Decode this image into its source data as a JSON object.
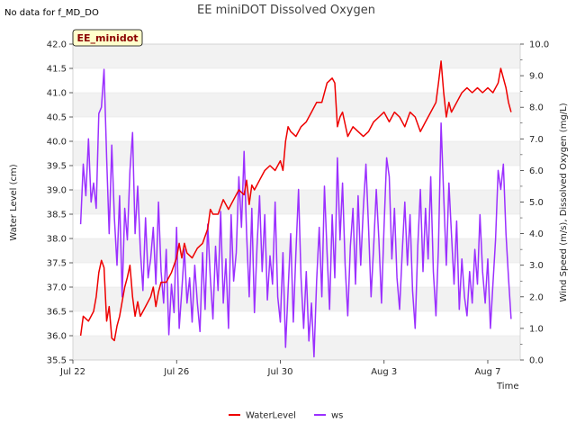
{
  "chart_data": {
    "type": "line",
    "title": "EE miniDOT Dissolved Oxygen",
    "no_data_note": "No data for f_MD_DO",
    "station_label": "EE_minidot",
    "xlabel": "Time",
    "ylabel_left": "Water Level (cm)",
    "ylabel_right": "Wind Speed (m/s), Dissolved Oxygen (mg/L)",
    "x_range_days": [
      0,
      17.25
    ],
    "ylim_left": [
      35.5,
      42.0
    ],
    "ylim_right": [
      0.0,
      10.0
    ],
    "x_ticks": [
      {
        "day": 0,
        "label": "Jul 22"
      },
      {
        "day": 4,
        "label": "Jul 26"
      },
      {
        "day": 8,
        "label": "Jul 30"
      },
      {
        "day": 12,
        "label": "Aug 3"
      },
      {
        "day": 16,
        "label": "Aug 7"
      }
    ],
    "y_ticks_left": [
      "35.5",
      "36.0",
      "36.5",
      "37.0",
      "37.5",
      "38.0",
      "38.5",
      "39.0",
      "39.5",
      "40.0",
      "40.5",
      "41.0",
      "41.5",
      "42.0"
    ],
    "y_ticks_right": [
      "0.0",
      "1.0",
      "2.0",
      "3.0",
      "4.0",
      "5.0",
      "6.0",
      "7.0",
      "8.0",
      "9.0",
      "10.0"
    ],
    "grid": "horizontal bands",
    "legend_position": "bottom-center",
    "series": [
      {
        "name": "WaterLevel",
        "axis": "left",
        "color": "#ee0000",
        "points": [
          [
            0.3,
            36.0
          ],
          [
            0.4,
            36.4
          ],
          [
            0.6,
            36.3
          ],
          [
            0.8,
            36.5
          ],
          [
            0.9,
            36.8
          ],
          [
            1.0,
            37.3
          ],
          [
            1.1,
            37.55
          ],
          [
            1.2,
            37.4
          ],
          [
            1.3,
            36.3
          ],
          [
            1.4,
            36.6
          ],
          [
            1.5,
            35.95
          ],
          [
            1.6,
            35.9
          ],
          [
            1.7,
            36.2
          ],
          [
            1.8,
            36.4
          ],
          [
            1.9,
            36.7
          ],
          [
            2.0,
            37.0
          ],
          [
            2.1,
            37.2
          ],
          [
            2.2,
            37.45
          ],
          [
            2.3,
            36.8
          ],
          [
            2.4,
            36.4
          ],
          [
            2.5,
            36.7
          ],
          [
            2.6,
            36.4
          ],
          [
            2.8,
            36.6
          ],
          [
            3.0,
            36.8
          ],
          [
            3.1,
            37.0
          ],
          [
            3.2,
            36.6
          ],
          [
            3.3,
            36.9
          ],
          [
            3.4,
            37.1
          ],
          [
            3.6,
            37.1
          ],
          [
            3.8,
            37.3
          ],
          [
            4.0,
            37.6
          ],
          [
            4.1,
            37.9
          ],
          [
            4.2,
            37.6
          ],
          [
            4.3,
            37.9
          ],
          [
            4.4,
            37.7
          ],
          [
            4.6,
            37.6
          ],
          [
            4.8,
            37.8
          ],
          [
            5.0,
            37.9
          ],
          [
            5.2,
            38.2
          ],
          [
            5.3,
            38.6
          ],
          [
            5.4,
            38.5
          ],
          [
            5.6,
            38.5
          ],
          [
            5.8,
            38.8
          ],
          [
            6.0,
            38.6
          ],
          [
            6.2,
            38.8
          ],
          [
            6.4,
            39.0
          ],
          [
            6.6,
            38.9
          ],
          [
            6.7,
            39.2
          ],
          [
            6.8,
            38.7
          ],
          [
            6.9,
            39.1
          ],
          [
            7.0,
            39.0
          ],
          [
            7.2,
            39.2
          ],
          [
            7.4,
            39.4
          ],
          [
            7.6,
            39.5
          ],
          [
            7.8,
            39.4
          ],
          [
            8.0,
            39.6
          ],
          [
            8.1,
            39.4
          ],
          [
            8.2,
            40.0
          ],
          [
            8.3,
            40.3
          ],
          [
            8.4,
            40.2
          ],
          [
            8.6,
            40.1
          ],
          [
            8.8,
            40.3
          ],
          [
            9.0,
            40.4
          ],
          [
            9.2,
            40.6
          ],
          [
            9.4,
            40.8
          ],
          [
            9.6,
            40.8
          ],
          [
            9.8,
            41.2
          ],
          [
            10.0,
            41.3
          ],
          [
            10.1,
            41.2
          ],
          [
            10.2,
            40.3
          ],
          [
            10.3,
            40.5
          ],
          [
            10.4,
            40.6
          ],
          [
            10.6,
            40.1
          ],
          [
            10.8,
            40.3
          ],
          [
            11.0,
            40.2
          ],
          [
            11.2,
            40.1
          ],
          [
            11.4,
            40.2
          ],
          [
            11.6,
            40.4
          ],
          [
            11.8,
            40.5
          ],
          [
            12.0,
            40.6
          ],
          [
            12.2,
            40.4
          ],
          [
            12.4,
            40.6
          ],
          [
            12.6,
            40.5
          ],
          [
            12.8,
            40.3
          ],
          [
            13.0,
            40.6
          ],
          [
            13.2,
            40.5
          ],
          [
            13.4,
            40.2
          ],
          [
            13.6,
            40.4
          ],
          [
            13.8,
            40.6
          ],
          [
            14.0,
            40.8
          ],
          [
            14.1,
            41.2
          ],
          [
            14.2,
            41.65
          ],
          [
            14.3,
            41.0
          ],
          [
            14.4,
            40.5
          ],
          [
            14.5,
            40.8
          ],
          [
            14.6,
            40.6
          ],
          [
            14.8,
            40.8
          ],
          [
            15.0,
            41.0
          ],
          [
            15.2,
            41.1
          ],
          [
            15.4,
            41.0
          ],
          [
            15.6,
            41.1
          ],
          [
            15.8,
            41.0
          ],
          [
            16.0,
            41.1
          ],
          [
            16.2,
            41.0
          ],
          [
            16.4,
            41.2
          ],
          [
            16.5,
            41.5
          ],
          [
            16.6,
            41.3
          ],
          [
            16.7,
            41.1
          ],
          [
            16.8,
            40.8
          ],
          [
            16.9,
            40.6
          ]
        ]
      },
      {
        "name": "ws",
        "axis": "right",
        "color": "#9b30ff",
        "points": [
          [
            0.3,
            4.3
          ],
          [
            0.4,
            6.2
          ],
          [
            0.5,
            5.2
          ],
          [
            0.6,
            7.0
          ],
          [
            0.7,
            5.0
          ],
          [
            0.8,
            5.6
          ],
          [
            0.9,
            4.8
          ],
          [
            1.0,
            7.8
          ],
          [
            1.1,
            8.0
          ],
          [
            1.2,
            9.2
          ],
          [
            1.3,
            6.4
          ],
          [
            1.4,
            4.0
          ],
          [
            1.5,
            6.8
          ],
          [
            1.6,
            4.5
          ],
          [
            1.7,
            3.0
          ],
          [
            1.8,
            5.2
          ],
          [
            1.9,
            2.0
          ],
          [
            2.0,
            4.8
          ],
          [
            2.1,
            3.8
          ],
          [
            2.2,
            6.0
          ],
          [
            2.3,
            7.2
          ],
          [
            2.4,
            4.0
          ],
          [
            2.5,
            5.5
          ],
          [
            2.6,
            3.5
          ],
          [
            2.7,
            2.2
          ],
          [
            2.8,
            4.5
          ],
          [
            2.9,
            2.6
          ],
          [
            3.0,
            3.2
          ],
          [
            3.1,
            4.2
          ],
          [
            3.2,
            2.4
          ],
          [
            3.3,
            5.0
          ],
          [
            3.4,
            2.8
          ],
          [
            3.5,
            1.8
          ],
          [
            3.6,
            3.5
          ],
          [
            3.7,
            0.8
          ],
          [
            3.8,
            2.4
          ],
          [
            3.9,
            1.5
          ],
          [
            4.0,
            4.2
          ],
          [
            4.1,
            1.0
          ],
          [
            4.2,
            2.2
          ],
          [
            4.3,
            3.5
          ],
          [
            4.4,
            1.8
          ],
          [
            4.5,
            2.6
          ],
          [
            4.6,
            1.2
          ],
          [
            4.7,
            3.0
          ],
          [
            4.8,
            1.8
          ],
          [
            4.9,
            0.9
          ],
          [
            5.0,
            3.4
          ],
          [
            5.1,
            1.6
          ],
          [
            5.2,
            4.3
          ],
          [
            5.3,
            2.6
          ],
          [
            5.4,
            1.3
          ],
          [
            5.5,
            3.6
          ],
          [
            5.6,
            2.2
          ],
          [
            5.7,
            4.7
          ],
          [
            5.8,
            1.8
          ],
          [
            5.9,
            3.2
          ],
          [
            6.0,
            1.0
          ],
          [
            6.1,
            4.6
          ],
          [
            6.2,
            2.5
          ],
          [
            6.3,
            3.4
          ],
          [
            6.4,
            5.8
          ],
          [
            6.5,
            4.2
          ],
          [
            6.6,
            6.6
          ],
          [
            6.7,
            4.0
          ],
          [
            6.8,
            2.0
          ],
          [
            6.9,
            4.8
          ],
          [
            7.0,
            1.5
          ],
          [
            7.1,
            3.6
          ],
          [
            7.2,
            5.2
          ],
          [
            7.3,
            2.8
          ],
          [
            7.4,
            4.6
          ],
          [
            7.5,
            1.9
          ],
          [
            7.6,
            3.3
          ],
          [
            7.7,
            2.4
          ],
          [
            7.8,
            5.0
          ],
          [
            7.9,
            2.0
          ],
          [
            8.0,
            1.2
          ],
          [
            8.1,
            3.4
          ],
          [
            8.2,
            0.4
          ],
          [
            8.3,
            2.2
          ],
          [
            8.4,
            4.0
          ],
          [
            8.5,
            1.2
          ],
          [
            8.6,
            3.4
          ],
          [
            8.7,
            5.4
          ],
          [
            8.8,
            2.6
          ],
          [
            8.9,
            1.0
          ],
          [
            9.0,
            2.8
          ],
          [
            9.1,
            0.6
          ],
          [
            9.2,
            1.8
          ],
          [
            9.3,
            0.1
          ],
          [
            9.4,
            2.5
          ],
          [
            9.5,
            4.2
          ],
          [
            9.6,
            2.0
          ],
          [
            9.7,
            5.5
          ],
          [
            9.8,
            3.4
          ],
          [
            9.9,
            1.6
          ],
          [
            10.0,
            4.6
          ],
          [
            10.1,
            2.6
          ],
          [
            10.2,
            6.4
          ],
          [
            10.3,
            3.8
          ],
          [
            10.4,
            5.6
          ],
          [
            10.5,
            3.0
          ],
          [
            10.6,
            1.4
          ],
          [
            10.7,
            3.6
          ],
          [
            10.8,
            4.8
          ],
          [
            10.9,
            2.4
          ],
          [
            11.0,
            5.2
          ],
          [
            11.1,
            3.0
          ],
          [
            11.2,
            4.8
          ],
          [
            11.3,
            6.2
          ],
          [
            11.4,
            4.2
          ],
          [
            11.5,
            2.0
          ],
          [
            11.6,
            3.6
          ],
          [
            11.7,
            5.4
          ],
          [
            11.8,
            3.8
          ],
          [
            11.9,
            1.8
          ],
          [
            12.0,
            4.2
          ],
          [
            12.1,
            6.4
          ],
          [
            12.2,
            5.8
          ],
          [
            12.3,
            3.2
          ],
          [
            12.4,
            4.8
          ],
          [
            12.5,
            2.6
          ],
          [
            12.6,
            1.6
          ],
          [
            12.7,
            3.4
          ],
          [
            12.8,
            5.0
          ],
          [
            12.9,
            3.0
          ],
          [
            13.0,
            4.6
          ],
          [
            13.1,
            2.2
          ],
          [
            13.2,
            1.0
          ],
          [
            13.3,
            3.6
          ],
          [
            13.4,
            5.4
          ],
          [
            13.5,
            2.8
          ],
          [
            13.6,
            4.8
          ],
          [
            13.7,
            3.2
          ],
          [
            13.8,
            5.8
          ],
          [
            13.9,
            2.8
          ],
          [
            14.0,
            1.4
          ],
          [
            14.1,
            3.6
          ],
          [
            14.2,
            7.5
          ],
          [
            14.3,
            5.2
          ],
          [
            14.4,
            3.0
          ],
          [
            14.5,
            5.6
          ],
          [
            14.6,
            4.0
          ],
          [
            14.7,
            2.4
          ],
          [
            14.8,
            4.4
          ],
          [
            14.9,
            1.6
          ],
          [
            15.0,
            3.2
          ],
          [
            15.1,
            2.0
          ],
          [
            15.2,
            1.4
          ],
          [
            15.3,
            2.8
          ],
          [
            15.4,
            1.8
          ],
          [
            15.5,
            3.5
          ],
          [
            15.6,
            2.4
          ],
          [
            15.7,
            4.6
          ],
          [
            15.8,
            2.8
          ],
          [
            15.9,
            1.8
          ],
          [
            16.0,
            3.2
          ],
          [
            16.1,
            1.0
          ],
          [
            16.2,
            2.4
          ],
          [
            16.3,
            3.8
          ],
          [
            16.4,
            6.0
          ],
          [
            16.5,
            5.4
          ],
          [
            16.6,
            6.2
          ],
          [
            16.7,
            4.0
          ],
          [
            16.8,
            2.6
          ],
          [
            16.9,
            1.3
          ]
        ]
      }
    ]
  }
}
